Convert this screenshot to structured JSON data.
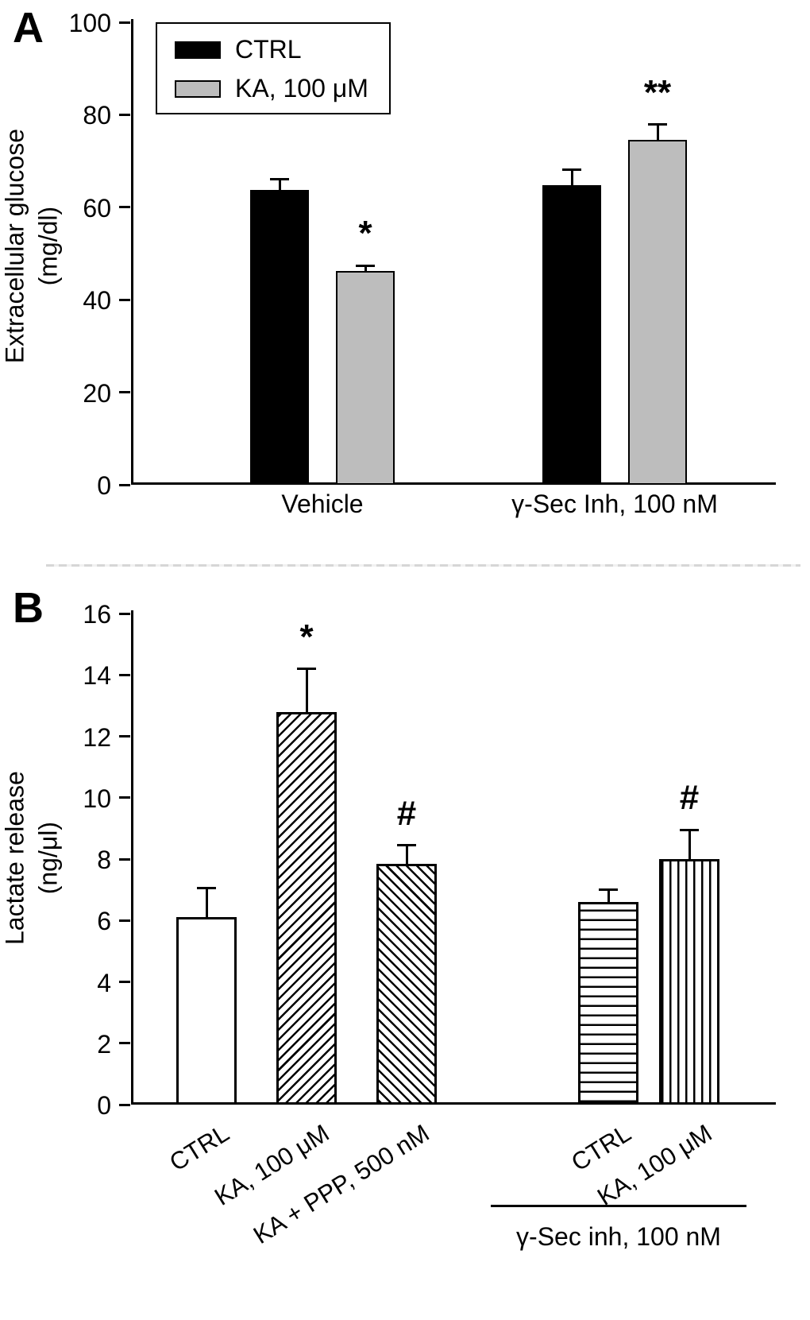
{
  "figure_type": "two-panel bar figure",
  "chart_data": [
    {
      "type": "bar",
      "panel": "A",
      "ylabel": "Extracellular glucose (mg/dl)",
      "ylabel_lines": [
        "Extracellular glucose",
        "(mg/dl)"
      ],
      "ylim": [
        0,
        100
      ],
      "yticks": [
        0,
        20,
        40,
        60,
        80,
        100
      ],
      "grid": false,
      "legend_position": "upper left",
      "groups": [
        "Vehicle",
        "γ-Sec Inh, 100 nM"
      ],
      "series": [
        {
          "name": "CTRL",
          "fill": "#000000",
          "values": [
            63.8,
            64.8
          ],
          "errors": [
            2.2,
            3.4
          ]
        },
        {
          "name": "KA, 100 μM",
          "fill": "#bdbdbd",
          "values": [
            46.2,
            74.5
          ],
          "errors": [
            1.2,
            3.4
          ]
        }
      ],
      "significance": [
        {
          "group_index": 0,
          "series_index": 1,
          "text": "*"
        },
        {
          "group_index": 1,
          "series_index": 1,
          "text": "**"
        }
      ]
    },
    {
      "type": "bar",
      "panel": "B",
      "ylabel": "Lactate release (ng/μl)",
      "ylabel_lines": [
        "Lactate release",
        "(ng/μl)"
      ],
      "ylim": [
        0,
        16
      ],
      "yticks": [
        0,
        2,
        4,
        6,
        8,
        10,
        12,
        14,
        16
      ],
      "grid": false,
      "categories": [
        "CTRL",
        "KA, 100 μM",
        "KA + PPP, 500 nM",
        "CTRL",
        "KA, 100 μM"
      ],
      "values": [
        6.1,
        12.8,
        7.85,
        6.6,
        8.0
      ],
      "errors": [
        0.95,
        1.4,
        0.6,
        0.4,
        0.95
      ],
      "bar_styles": [
        "white",
        "hatch-diagonal-up",
        "hatch-diagonal-down",
        "hatch-horizontal",
        "hatch-vertical"
      ],
      "significance": [
        {
          "bar_index": 1,
          "text": "*"
        },
        {
          "bar_index": 2,
          "text": "#"
        },
        {
          "bar_index": 4,
          "text": "#"
        }
      ],
      "group_annotation": {
        "bar_indices": [
          3,
          4
        ],
        "label": "γ-Sec inh, 100 nM"
      }
    }
  ]
}
